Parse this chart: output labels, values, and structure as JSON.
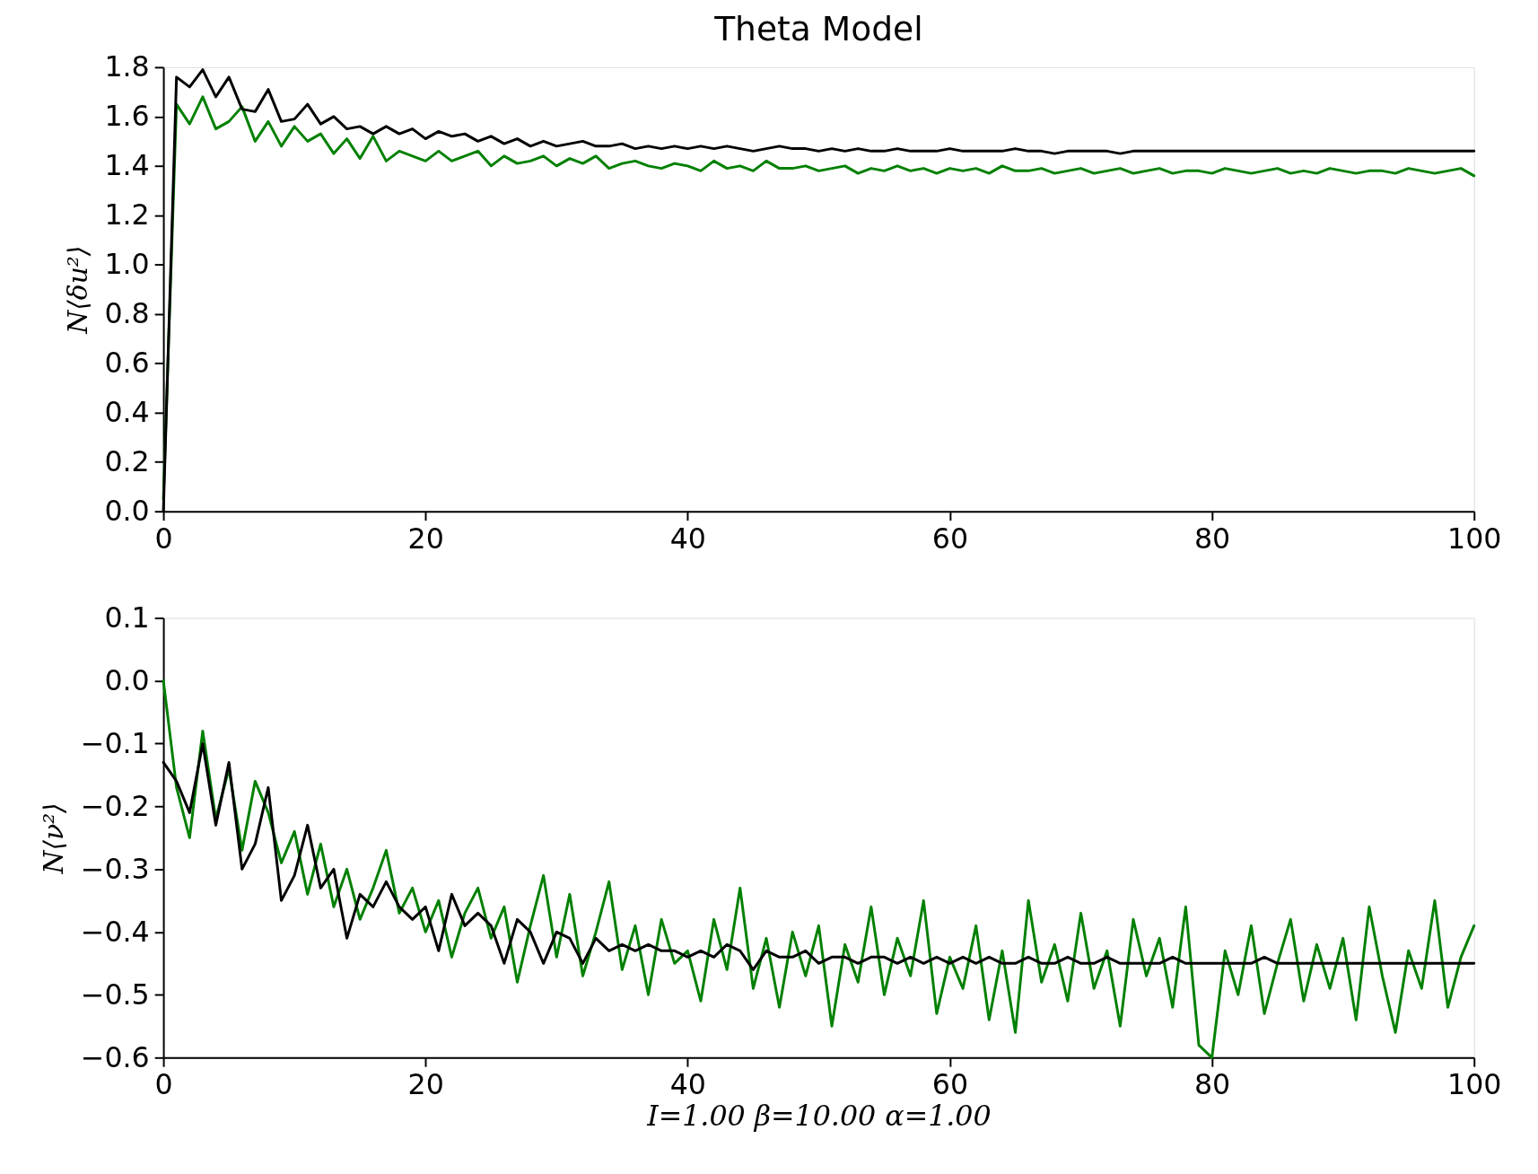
{
  "chart_data": [
    {
      "type": "line",
      "title": "Theta Model",
      "ylabel": "N⟨δu²⟩",
      "grid": false,
      "legend": false,
      "line_style": "solid",
      "marker": "none",
      "xlim": [
        0,
        100
      ],
      "xticks": [
        0,
        20,
        40,
        60,
        80,
        100
      ],
      "ylim": [
        0,
        1.8
      ],
      "yticks": [
        {
          "value": 0,
          "label": "0.0"
        },
        {
          "value": 0.2,
          "label": "0.2"
        },
        {
          "value": 0.4,
          "label": "0.4"
        },
        {
          "value": 0.6,
          "label": "0.6"
        },
        {
          "value": 0.8,
          "label": "0.8"
        },
        {
          "value": 1,
          "label": "1.0"
        },
        {
          "value": 1.2,
          "label": "1.2"
        },
        {
          "value": 1.4,
          "label": "1.4"
        },
        {
          "value": 1.6,
          "label": "1.6"
        },
        {
          "value": 1.8,
          "label": "1.8"
        }
      ],
      "x": [
        0,
        1,
        2,
        3,
        4,
        5,
        6,
        7,
        8,
        9,
        10,
        11,
        12,
        13,
        14,
        15,
        16,
        17,
        18,
        19,
        20,
        21,
        22,
        23,
        24,
        25,
        26,
        27,
        28,
        29,
        30,
        31,
        32,
        33,
        34,
        35,
        36,
        37,
        38,
        39,
        40,
        41,
        42,
        43,
        44,
        45,
        46,
        47,
        48,
        49,
        50,
        51,
        52,
        53,
        54,
        55,
        56,
        57,
        58,
        59,
        60,
        61,
        62,
        63,
        64,
        65,
        66,
        67,
        68,
        69,
        70,
        71,
        72,
        73,
        74,
        75,
        76,
        77,
        78,
        79,
        80,
        81,
        82,
        83,
        84,
        85,
        86,
        87,
        88,
        89,
        90,
        91,
        92,
        93,
        94,
        95,
        96,
        97,
        98,
        99,
        100
      ],
      "series": [
        {
          "color": "#008000",
          "values": [
            0.05,
            1.65,
            1.57,
            1.68,
            1.55,
            1.58,
            1.64,
            1.5,
            1.58,
            1.48,
            1.56,
            1.5,
            1.53,
            1.45,
            1.51,
            1.43,
            1.52,
            1.42,
            1.46,
            1.44,
            1.42,
            1.46,
            1.42,
            1.44,
            1.46,
            1.4,
            1.44,
            1.41,
            1.42,
            1.44,
            1.4,
            1.43,
            1.41,
            1.44,
            1.39,
            1.41,
            1.42,
            1.4,
            1.39,
            1.41,
            1.4,
            1.38,
            1.42,
            1.39,
            1.4,
            1.38,
            1.42,
            1.39,
            1.39,
            1.4,
            1.38,
            1.39,
            1.4,
            1.37,
            1.39,
            1.38,
            1.4,
            1.38,
            1.39,
            1.37,
            1.39,
            1.38,
            1.39,
            1.37,
            1.4,
            1.38,
            1.38,
            1.39,
            1.37,
            1.38,
            1.39,
            1.37,
            1.38,
            1.39,
            1.37,
            1.38,
            1.39,
            1.37,
            1.38,
            1.38,
            1.37,
            1.39,
            1.38,
            1.37,
            1.38,
            1.39,
            1.37,
            1.38,
            1.37,
            1.39,
            1.38,
            1.37,
            1.38,
            1.38,
            1.37,
            1.39,
            1.38,
            1.37,
            1.38,
            1.39,
            1.36
          ]
        },
        {
          "color": "#000000",
          "values": [
            0.0,
            1.76,
            1.72,
            1.79,
            1.68,
            1.76,
            1.63,
            1.62,
            1.71,
            1.58,
            1.59,
            1.65,
            1.57,
            1.6,
            1.55,
            1.56,
            1.53,
            1.56,
            1.53,
            1.55,
            1.51,
            1.54,
            1.52,
            1.53,
            1.5,
            1.52,
            1.49,
            1.51,
            1.48,
            1.5,
            1.48,
            1.49,
            1.5,
            1.48,
            1.48,
            1.49,
            1.47,
            1.48,
            1.47,
            1.48,
            1.47,
            1.48,
            1.47,
            1.48,
            1.47,
            1.46,
            1.47,
            1.48,
            1.47,
            1.47,
            1.46,
            1.47,
            1.46,
            1.47,
            1.46,
            1.46,
            1.47,
            1.46,
            1.46,
            1.46,
            1.47,
            1.46,
            1.46,
            1.46,
            1.46,
            1.47,
            1.46,
            1.46,
            1.45,
            1.46,
            1.46,
            1.46,
            1.46,
            1.45,
            1.46,
            1.46,
            1.46,
            1.46,
            1.46,
            1.46,
            1.46,
            1.46,
            1.46,
            1.46,
            1.46,
            1.46,
            1.46,
            1.46,
            1.46,
            1.46,
            1.46,
            1.46,
            1.46,
            1.46,
            1.46,
            1.46,
            1.46,
            1.46,
            1.46,
            1.46,
            1.46
          ]
        }
      ]
    },
    {
      "type": "line",
      "ylabel": "N⟨ν²⟩",
      "xlabel": "I=1.00   β=10.00   α=1.00",
      "grid": false,
      "legend": false,
      "line_style": "solid",
      "marker": "none",
      "xlim": [
        0,
        100
      ],
      "xticks": [
        0,
        20,
        40,
        60,
        80,
        100
      ],
      "ylim": [
        -0.6,
        0.1
      ],
      "yticks": [
        {
          "value": -0.6,
          "label": "−0.6"
        },
        {
          "value": -0.5,
          "label": "−0.5"
        },
        {
          "value": -0.4,
          "label": "−0.4"
        },
        {
          "value": -0.3,
          "label": "−0.3"
        },
        {
          "value": -0.2,
          "label": "−0.2"
        },
        {
          "value": -0.1,
          "label": "−0.1"
        },
        {
          "value": 0,
          "label": "0.0"
        },
        {
          "value": 0.1,
          "label": "0.1"
        }
      ],
      "x": [
        0,
        1,
        2,
        3,
        4,
        5,
        6,
        7,
        8,
        9,
        10,
        11,
        12,
        13,
        14,
        15,
        16,
        17,
        18,
        19,
        20,
        21,
        22,
        23,
        24,
        25,
        26,
        27,
        28,
        29,
        30,
        31,
        32,
        33,
        34,
        35,
        36,
        37,
        38,
        39,
        40,
        41,
        42,
        43,
        44,
        45,
        46,
        47,
        48,
        49,
        50,
        51,
        52,
        53,
        54,
        55,
        56,
        57,
        58,
        59,
        60,
        61,
        62,
        63,
        64,
        65,
        66,
        67,
        68,
        69,
        70,
        71,
        72,
        73,
        74,
        75,
        76,
        77,
        78,
        79,
        80,
        81,
        82,
        83,
        84,
        85,
        86,
        87,
        88,
        89,
        90,
        91,
        92,
        93,
        94,
        95,
        96,
        97,
        98,
        99,
        100
      ],
      "series": [
        {
          "color": "#008000",
          "values": [
            0.0,
            -0.17,
            -0.25,
            -0.08,
            -0.22,
            -0.14,
            -0.27,
            -0.16,
            -0.21,
            -0.29,
            -0.24,
            -0.34,
            -0.26,
            -0.36,
            -0.3,
            -0.38,
            -0.33,
            -0.27,
            -0.37,
            -0.33,
            -0.4,
            -0.35,
            -0.44,
            -0.37,
            -0.33,
            -0.41,
            -0.36,
            -0.48,
            -0.39,
            -0.31,
            -0.44,
            -0.34,
            -0.47,
            -0.4,
            -0.32,
            -0.46,
            -0.39,
            -0.5,
            -0.38,
            -0.45,
            -0.43,
            -0.51,
            -0.38,
            -0.46,
            -0.33,
            -0.49,
            -0.41,
            -0.52,
            -0.4,
            -0.47,
            -0.39,
            -0.55,
            -0.42,
            -0.48,
            -0.36,
            -0.5,
            -0.41,
            -0.47,
            -0.35,
            -0.53,
            -0.44,
            -0.49,
            -0.39,
            -0.54,
            -0.43,
            -0.56,
            -0.35,
            -0.48,
            -0.42,
            -0.51,
            -0.37,
            -0.49,
            -0.43,
            -0.55,
            -0.38,
            -0.47,
            -0.41,
            -0.52,
            -0.36,
            -0.58,
            -0.6,
            -0.43,
            -0.5,
            -0.39,
            -0.53,
            -0.45,
            -0.38,
            -0.51,
            -0.42,
            -0.49,
            -0.41,
            -0.54,
            -0.36,
            -0.47,
            -0.56,
            -0.43,
            -0.49,
            -0.35,
            -0.52,
            -0.44,
            -0.39
          ]
        },
        {
          "color": "#000000",
          "values": [
            -0.13,
            -0.16,
            -0.21,
            -0.1,
            -0.23,
            -0.13,
            -0.3,
            -0.26,
            -0.17,
            -0.35,
            -0.31,
            -0.23,
            -0.33,
            -0.3,
            -0.41,
            -0.34,
            -0.36,
            -0.32,
            -0.36,
            -0.38,
            -0.36,
            -0.43,
            -0.34,
            -0.39,
            -0.37,
            -0.39,
            -0.45,
            -0.38,
            -0.4,
            -0.45,
            -0.4,
            -0.41,
            -0.45,
            -0.41,
            -0.43,
            -0.42,
            -0.43,
            -0.42,
            -0.43,
            -0.43,
            -0.44,
            -0.43,
            -0.44,
            -0.42,
            -0.43,
            -0.46,
            -0.43,
            -0.44,
            -0.44,
            -0.43,
            -0.45,
            -0.44,
            -0.44,
            -0.45,
            -0.44,
            -0.44,
            -0.45,
            -0.44,
            -0.45,
            -0.44,
            -0.45,
            -0.44,
            -0.45,
            -0.44,
            -0.45,
            -0.45,
            -0.44,
            -0.45,
            -0.45,
            -0.44,
            -0.45,
            -0.45,
            -0.44,
            -0.45,
            -0.45,
            -0.45,
            -0.45,
            -0.44,
            -0.45,
            -0.45,
            -0.45,
            -0.45,
            -0.45,
            -0.45,
            -0.44,
            -0.45,
            -0.45,
            -0.45,
            -0.45,
            -0.45,
            -0.45,
            -0.45,
            -0.45,
            -0.45,
            -0.45,
            -0.45,
            -0.45,
            -0.45,
            -0.45,
            -0.45,
            -0.45
          ]
        }
      ]
    }
  ]
}
